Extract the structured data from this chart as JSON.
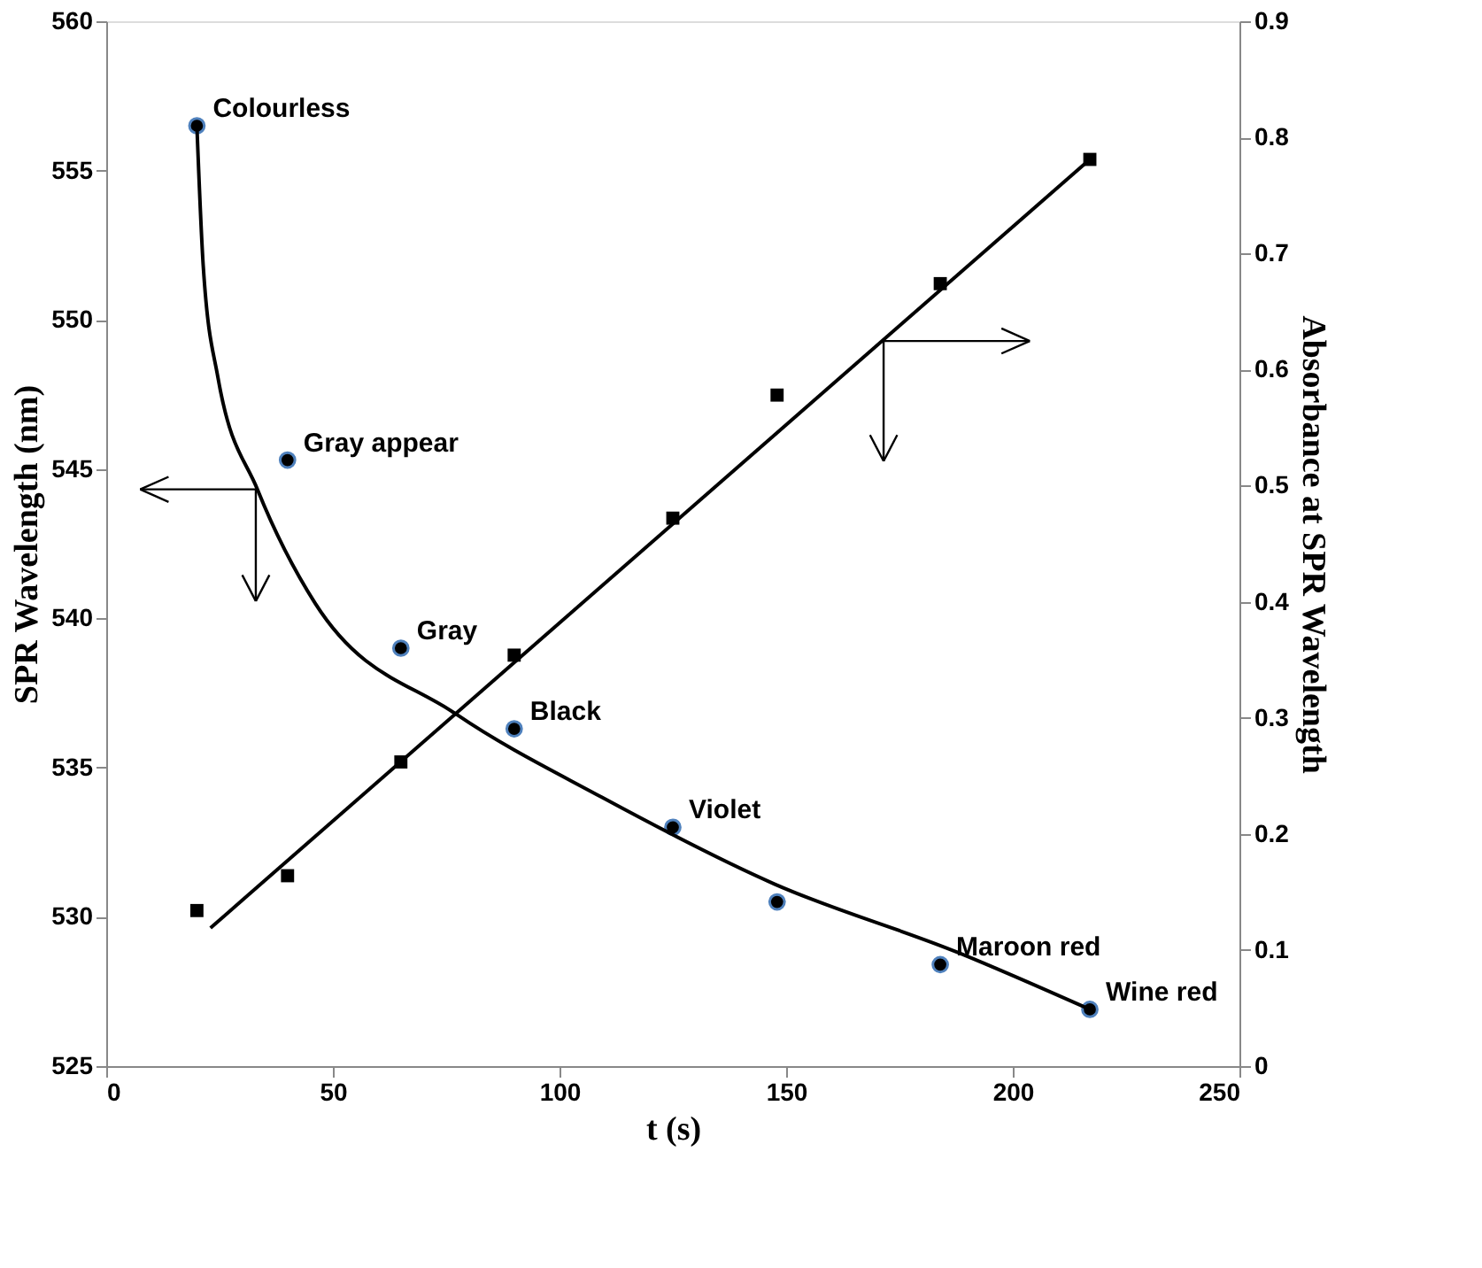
{
  "chart_data": {
    "type": "scatter",
    "xlabel": "t (s)",
    "ylabel": "SPR Wavelength (nm)",
    "y2label": "Absorbance   at SPR Wavelength",
    "x": [
      20,
      40,
      65,
      90,
      125,
      148,
      184,
      217
    ],
    "xlim": [
      0,
      250
    ],
    "xticks": [
      0,
      50,
      100,
      150,
      200,
      250
    ],
    "ylim": [
      525,
      560
    ],
    "yticks": [
      525,
      530,
      535,
      540,
      545,
      550,
      555,
      560
    ],
    "y2lim": [
      0,
      0.9
    ],
    "y2ticks": [
      0,
      0.1,
      0.2,
      0.3,
      0.4,
      0.5,
      0.6,
      0.7,
      0.8,
      0.9
    ],
    "grid": false,
    "series": [
      {
        "type": "scatter",
        "marker": "circle",
        "color": "#000000",
        "values": [
          556.5,
          545.3,
          539.0,
          536.3,
          533.0,
          530.5,
          528.4,
          526.9
        ]
      },
      {
        "type": "scatter",
        "marker": "square",
        "axis": "y2",
        "color": "#000000",
        "values": [
          0.134,
          0.164,
          0.262,
          0.354,
          0.472,
          0.578,
          0.674,
          0.781
        ]
      },
      {
        "type": "line",
        "marker": "none",
        "line_style": "solid",
        "color": "#000000",
        "x": [
          20,
          21.4,
          24.6,
          33.4,
          46.1,
          77.1,
          109.4,
          147.4,
          188,
          217
        ],
        "values": [
          556.5,
          551.8,
          548.1,
          544.3,
          540.5,
          536.8,
          534.0,
          531.1,
          528.8,
          526.9
        ]
      },
      {
        "type": "line",
        "marker": "none",
        "line_style": "solid",
        "axis": "y2",
        "color": "#000000",
        "x": [
          23,
          217
        ],
        "values": [
          0.119,
          0.781
        ]
      }
    ],
    "annotations": [
      {
        "text": "Colourless",
        "x": 20,
        "y": 556.5
      },
      {
        "text": "Gray appear",
        "x": 40,
        "y": 545.3
      },
      {
        "text": "Gray",
        "x": 65,
        "y": 539.0
      },
      {
        "text": "Black",
        "x": 90,
        "y": 536.3
      },
      {
        "text": "Violet",
        "x": 125,
        "y": 533.0
      },
      {
        "text": "Maroon red",
        "x": 184,
        "y": 528.4
      },
      {
        "text": "Wine red",
        "x": 217,
        "y": 526.9
      }
    ]
  }
}
